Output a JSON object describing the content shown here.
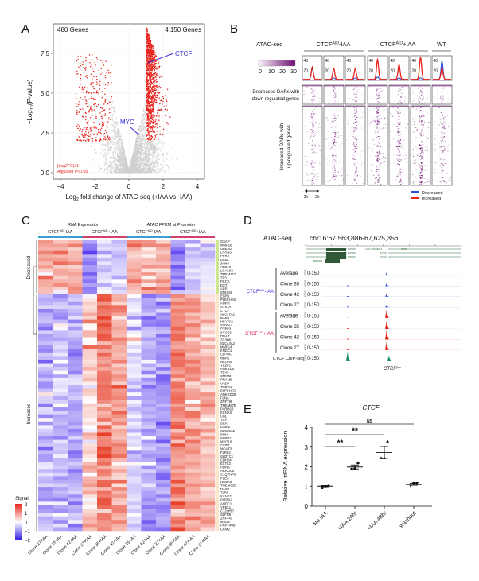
{
  "panel_letters": {
    "a": "A",
    "b": "B",
    "c": "C",
    "d": "D",
    "e": "E"
  },
  "colors": {
    "increased_red": "#e8241c",
    "decreased_blue": "#2a4fd6",
    "nonsig_gray": "#cfcfcf",
    "label_blue": "#3a2fd8",
    "label_red": "#e0245e",
    "heat_purple": "#6b0a72",
    "chip_green": "#1f8a6a",
    "neg_signal": "#5b3ff0",
    "pos_signal": "#e8402a"
  },
  "volcano": {
    "left_count": "480 Genes",
    "right_count": "4,150 Genes",
    "ctcf_label": "CTCF",
    "myc_label": "MYC",
    "threshold_1": "|Log2FC|>1",
    "threshold_2": "Adjusted P<0.05",
    "ylabel_pre": "−Log",
    "ylabel_sub": "10",
    "ylabel_post": "(P-value)",
    "xlabel_pre": "Log",
    "xlabel_sub": "2",
    "xlabel_post": " fold change of ATAC-seq (+IAA vs -IAA)",
    "xticks": [
      "−4",
      "−2",
      "0",
      "2",
      "4"
    ],
    "yticks": [
      "0.0",
      "2.5",
      "5.0",
      "7.5"
    ]
  },
  "profiles": {
    "assay": "ATAC-seq",
    "group1": {
      "base": "CTCF",
      "sup": "AID",
      "suffix": "-IAA"
    },
    "group2": {
      "base": "CTCF",
      "sup": "AID",
      "suffix": "+IAA"
    },
    "group3": {
      "base": "WT"
    },
    "colorbar_ticks": [
      "0",
      "10",
      "20",
      "30"
    ],
    "profile_ticks": [
      "40",
      "20"
    ],
    "decreased_label_1": "Decreased DARs with",
    "decreased_label_2": "down-regulated genes",
    "increased_label_1": "Increased DARs with",
    "increased_label_2": "up-regulated genes",
    "scale_left": "-2k",
    "scale_right": "2k",
    "legend_decreased": "Decreased",
    "legend_increased": "Increased"
  },
  "heatmap": {
    "rna_title": "RNA Expression",
    "atac_title": "ATAC FPKM at Promoter",
    "sub_minus": {
      "base": "CTCF",
      "sup": "AID",
      "suffix": "-IAA"
    },
    "sub_plus": {
      "base": "CTCF",
      "sup": "AID",
      "suffix": "+IAA"
    },
    "row_group_decreased": "Decreased",
    "row_group_increased": "Increased",
    "legend_title": "Signal",
    "legend_ticks": [
      "2",
      "1",
      "0",
      "−1",
      "−2"
    ]
  },
  "tracks": {
    "assay": "ATAC-seq",
    "locus": "chr16:67,563,886-67,625,356",
    "gene_models": [
      "RIPOR1",
      "RIPOR1",
      "RIPOR1",
      "RIPOR1",
      "LOC107984813",
      "CTCF",
      "CTCF",
      "CTCF"
    ],
    "group_minus": {
      "base": "CTCF",
      "sup": "AID",
      "suffix": "-IAA"
    },
    "group_plus": {
      "base": "CTCF",
      "sup": "AID",
      "suffix": "+IAA"
    },
    "rows": [
      {
        "label": "Average",
        "range": "0-150",
        "group": "minus",
        "peak": 0.25
      },
      {
        "label": "Clone 35",
        "range": "0-150",
        "group": "minus",
        "peak": 0.22
      },
      {
        "label": "Clone 42",
        "range": "0-150",
        "group": "minus",
        "peak": 0.22
      },
      {
        "label": "Clone 27",
        "range": "0-150",
        "group": "minus",
        "peak": 0.2
      },
      {
        "label": "Average",
        "range": "0-150",
        "group": "plus",
        "peak": 0.75
      },
      {
        "label": "Clone 35",
        "range": "0-150",
        "group": "plus",
        "peak": 0.7
      },
      {
        "label": "Clone 42",
        "range": "0-150",
        "group": "plus",
        "peak": 0.8
      },
      {
        "label": "Clone 27",
        "range": "0-150",
        "group": "plus",
        "peak": 0.75
      },
      {
        "label": "CTCF ChIP-seq",
        "range": "0-150",
        "group": "chip",
        "peak": 0.5
      }
    ],
    "promoter_label": {
      "base": "CTCF",
      "sup": "pro"
    }
  },
  "chart_data": [
    {
      "panel": "A",
      "type": "scatter",
      "xlabel": "Log2 fold change of ATAC-seq (+IAA vs -IAA)",
      "ylabel": "-Log10(P-value)",
      "xlim": [
        -4.3,
        4.3
      ],
      "ylim": [
        -0.2,
        8.8
      ],
      "xticks": [
        -4,
        -2,
        0,
        2,
        4
      ],
      "yticks": [
        0,
        2.5,
        5,
        7.5
      ],
      "grid": true,
      "significant_down": 480,
      "significant_up": 4150,
      "thresholds": {
        "abs_log2fc": 1,
        "adjusted_p": 0.05
      },
      "annotations": [
        {
          "label": "CTCF",
          "x": 1.2,
          "y": 6.9
        },
        {
          "label": "MYC",
          "x": 0.55,
          "y": 2.4
        }
      ]
    },
    {
      "panel": "B",
      "type": "heatmap",
      "columns": [
        "CTCF-AID -IAA rep1",
        "CTCF-AID -IAA rep2",
        "CTCF-AID -IAA rep3",
        "CTCF-AID +IAA rep1",
        "CTCF-AID +IAA rep2",
        "CTCF-AID +IAA rep3",
        "WT"
      ],
      "profile_peak_increased": [
        25,
        22,
        22,
        40,
        30,
        45,
        22
      ],
      "profile_peak_decreased": [
        22,
        3,
        3,
        5,
        3,
        3,
        37
      ],
      "profile_ylim": [
        0,
        50
      ],
      "colorbar_range": [
        0,
        30
      ],
      "window": "-2k to 2k"
    },
    {
      "panel": "C",
      "type": "heatmap",
      "columns": [
        "Clone 27-IAA",
        "Clone 35-IAA",
        "Clone 42-IAA",
        "Clone 27+IAA",
        "Clone 35+IAA",
        "Clone 42+IAA",
        "Clone 35-IAA",
        "Clone 42-IAA",
        "Clone 27-IAA",
        "Clone 35+IAA",
        "Clone 42+IAA",
        "Clone 27+IAA"
      ],
      "column_groups": [
        "RNA Expression",
        "RNA Expression",
        "RNA Expression",
        "RNA Expression",
        "RNA Expression",
        "RNA Expression",
        "ATAC FPKM at Promoter",
        "ATAC FPKM at Promoter",
        "ATAC FPKM at Promoter",
        "ATAC FPKM at Promoter",
        "ATAC FPKM at Promoter",
        "ATAC FPKM at Promoter"
      ],
      "decreased_genes": [
        "GSAP",
        "MMP16",
        "UBE2D",
        "LRRN3",
        "PPR2",
        "DCBL",
        "JAM3",
        "ATG10",
        "LGALS8",
        "TMEM117",
        "ZP3",
        "PCCA",
        "DST",
        "APP",
        "SNHG8"
      ],
      "increased_genes": [
        "EGR1",
        "PLEKHA5",
        "AHRR",
        "STX1A",
        "CTCF",
        "SLC27A2",
        "DAD1",
        "NFATC2",
        "S100A4",
        "PTBP3",
        "SYCE3",
        "DNAZ",
        "ZC3H6",
        "SLC44A2",
        "MMP14",
        "KNDC1",
        "CD70A",
        "NBR1",
        "NCOA5",
        "VEZF1",
        "ANKRD6",
        "TBX3",
        "SMIM3",
        "PRAME",
        "VASP",
        "TDRKH",
        "PLEKHG2",
        "ANKRD28",
        "FLNA",
        "ZNF799",
        "TMEM87B",
        "PARD6B",
        "KCNK3",
        "CBL",
        "TCF7",
        "DEK",
        "LIMK1",
        "SLC35A5",
        "SNN",
        "NLRP1",
        "MYO10",
        "CCR7",
        "MGAT3",
        "F2RL3",
        "SH3TC1",
        "CDH24",
        "EXTL3",
        "PLIN3",
        "ARRDC5",
        "C1QTNF6",
        "PLEC",
        "NCOA3",
        "TMEM63B",
        "RAC2",
        "TLR9",
        "KANK2",
        "PITPNA",
        "AHDC1",
        "YPEL1",
        "C12orf87",
        "SLFN5",
        "ZNF443",
        "MXD3",
        "PRPF40B",
        "CCM2"
      ],
      "decreased_column_means": [
        0.9,
        0.9,
        0.9,
        -1.2,
        -0.6,
        -0.6,
        0.8,
        0.8,
        0.9,
        -1.4,
        -0.6,
        -0.4
      ],
      "increased_column_means": [
        -0.8,
        -0.6,
        -0.8,
        0.5,
        1.4,
        0.9,
        -0.4,
        -0.9,
        -1.1,
        1.3,
        0.9,
        0.7
      ],
      "color_range": [
        -2,
        2
      ]
    },
    {
      "panel": "E",
      "type": "scatter",
      "title": "CTCF",
      "ylabel": "Relative mRNA expression",
      "categories": [
        "No IAA",
        "+IAA 24hr",
        "+IAA 48hr",
        "washout"
      ],
      "ylim": [
        0,
        4
      ],
      "yticks": [
        "0",
        "1",
        "2",
        "3",
        "4"
      ],
      "points": [
        [
          0.95,
          1.0,
          1.05
        ],
        [
          1.88,
          1.9,
          2.2
        ],
        [
          2.45,
          2.45,
          3.3
        ],
        [
          1.02,
          1.15,
          1.15
        ]
      ],
      "means": [
        1.0,
        1.99,
        2.73,
        1.1
      ],
      "sem": [
        0.03,
        0.1,
        0.3,
        0.05
      ],
      "markers": [
        "circle",
        "square",
        "triangle",
        "inverted-triangle"
      ],
      "significance": [
        {
          "from": "No IAA",
          "to": "+IAA 24hr",
          "label": "**"
        },
        {
          "from": "No IAA",
          "to": "+IAA 48hr",
          "label": "**"
        },
        {
          "from": "No IAA",
          "to": "washout",
          "label": "NS"
        }
      ]
    }
  ]
}
